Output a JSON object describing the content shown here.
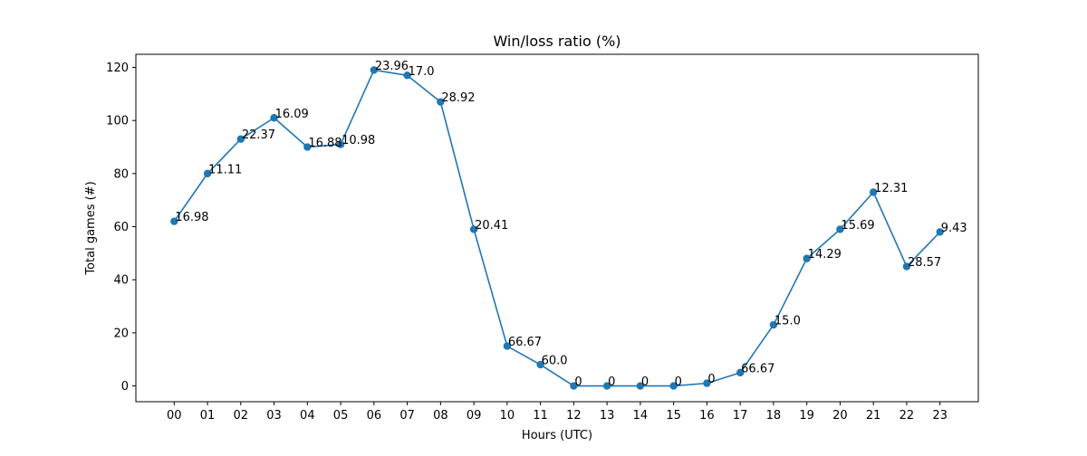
{
  "chart_data": {
    "type": "line",
    "title": "Win/loss ratio (%)",
    "xlabel": "Hours (UTC)",
    "ylabel": "Total games (#)",
    "categories": [
      "00",
      "01",
      "02",
      "03",
      "04",
      "05",
      "06",
      "07",
      "08",
      "09",
      "10",
      "11",
      "12",
      "13",
      "14",
      "15",
      "16",
      "17",
      "18",
      "19",
      "20",
      "21",
      "22",
      "23"
    ],
    "series": [
      {
        "values": [
          62,
          80,
          93,
          101,
          90,
          91,
          119,
          117,
          107,
          59,
          15,
          8,
          0,
          0,
          0,
          0,
          1,
          5,
          23,
          48,
          59,
          73,
          45,
          58
        ],
        "point_labels": [
          "16.98",
          "11.11",
          "22.37",
          "16.09",
          "16.88",
          "10.98",
          "23.96",
          "17.0",
          "28.92",
          "20.41",
          "66.67",
          "60.0",
          "0",
          "0",
          "0",
          "0",
          "0",
          "66.67",
          "15.0",
          "14.29",
          "15.69",
          "12.31",
          "28.57",
          "9.43"
        ],
        "color": "#1f77b4"
      }
    ],
    "y_ticks": [
      0,
      20,
      40,
      60,
      80,
      100,
      120
    ],
    "ylim": [
      -5.95,
      124.95
    ],
    "grid": false,
    "legend": "none"
  }
}
